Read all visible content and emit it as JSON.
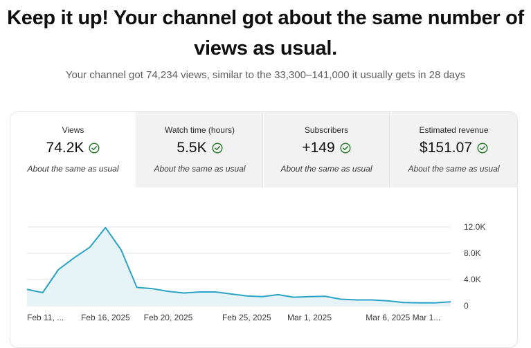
{
  "headline": "Keep it up! Your channel got about the same number of views as usual.",
  "summary": "Your channel got 74,234 views, similar to the 33,300–141,000 it usually gets in 28 days",
  "tabs": [
    {
      "label": "Views",
      "value": "74.2K",
      "note": "About the same as usual",
      "icon": "check-circle-icon"
    },
    {
      "label": "Watch time (hours)",
      "value": "5.5K",
      "note": "About the same as usual",
      "icon": "check-circle-icon"
    },
    {
      "label": "Subscribers",
      "value": "+149",
      "note": "About the same as usual",
      "icon": "check-circle-icon"
    },
    {
      "label": "Estimated revenue",
      "value": "$151.07",
      "note": "About the same as usual",
      "icon": "check-circle-icon"
    }
  ],
  "colors": {
    "accent": "#2ba3c4",
    "fill": "#e6f4f8",
    "check": "#2e7d32",
    "grid": "#e5e5e5"
  },
  "chart_data": {
    "type": "area",
    "title": "",
    "xlabel": "",
    "ylabel": "",
    "x_ticks": [
      "Feb 11, ...",
      "Feb 16, 2025",
      "Feb 20, 2025",
      "Feb 25, 2025",
      "Mar 1, 2025",
      "Mar 6, 2025",
      "Mar 1..."
    ],
    "x_tick_index": [
      0,
      5,
      9,
      14,
      18,
      23,
      26
    ],
    "y_ticks": [
      "12.0K",
      "8.0K",
      "4.0K",
      "0"
    ],
    "y_tick_values": [
      12000,
      8000,
      4000,
      0
    ],
    "ylim": [
      0,
      12000
    ],
    "grid": true,
    "series": [
      {
        "values": [
          2500,
          2000,
          5500,
          7300,
          8900,
          11900,
          8500,
          2800,
          2600,
          2200,
          1950,
          2100,
          2100,
          1800,
          1500,
          1400,
          1700,
          1300,
          1400,
          1450,
          1000,
          900,
          900,
          750,
          500,
          450,
          450,
          600
        ]
      }
    ]
  }
}
